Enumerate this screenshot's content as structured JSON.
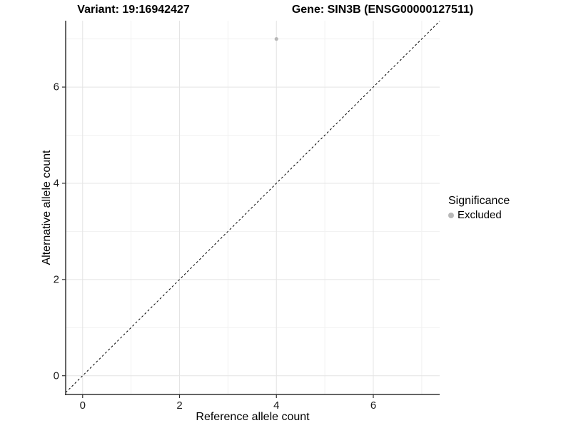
{
  "title": {
    "variant": "Variant: 19:16942427",
    "gene": "Gene: SIN3B (ENSG00000127511)"
  },
  "chart_data": {
    "type": "scatter",
    "xlabel": "Reference allele count",
    "ylabel": "Alternative allele count",
    "xlim": [
      -0.35,
      7.37
    ],
    "ylim": [
      -0.39,
      7.38
    ],
    "x_major_ticks": [
      0,
      2,
      4,
      6
    ],
    "y_major_ticks": [
      0,
      2,
      4,
      6
    ],
    "x_minor_ticks": [
      1,
      3,
      5,
      7
    ],
    "y_minor_ticks": [
      1,
      3,
      5,
      7
    ],
    "grid": true,
    "points": [
      {
        "x": 4,
        "y": 7,
        "series": "Excluded"
      }
    ],
    "reference_line": {
      "type": "identity",
      "style": "dashed",
      "color": "#000000"
    },
    "legend": {
      "title": "Significance",
      "position": "right",
      "entries": [
        {
          "label": "Excluded",
          "color": "#b8b8b8"
        }
      ]
    },
    "colors": {
      "point": "#b8b8b8",
      "grid_major": "#e4e4e4",
      "grid_minor": "#f1f1f1",
      "axis_line": "#333333",
      "tick_mark": "#333333"
    }
  }
}
